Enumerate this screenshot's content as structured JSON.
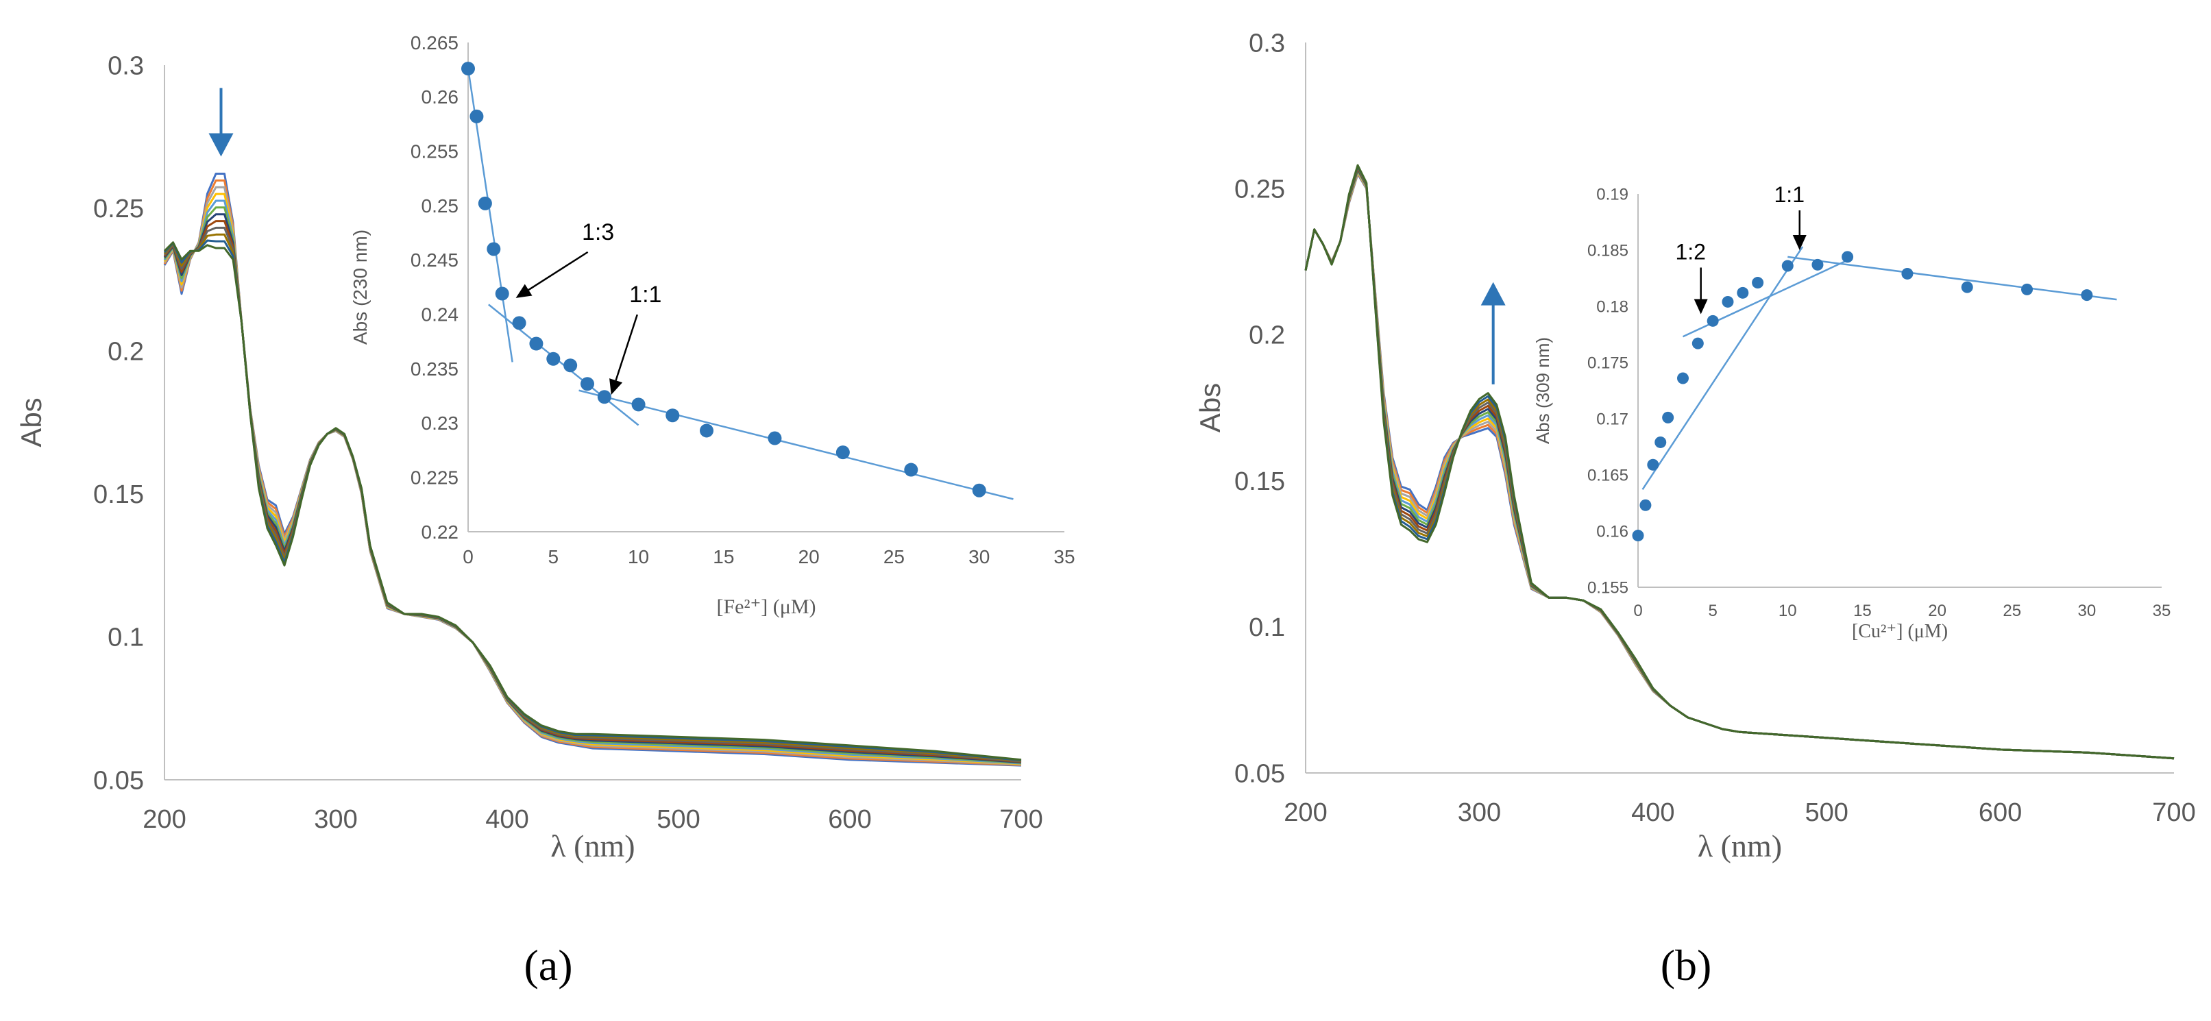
{
  "figure": {
    "panel_a_label": "(a)",
    "panel_b_label": "(b)"
  },
  "chart_data": [
    {
      "id": "a-main",
      "type": "line",
      "xlabel": "λ (nm)",
      "ylabel": "Abs",
      "xlim": [
        200,
        700
      ],
      "ylim": [
        0.05,
        0.3
      ],
      "xticks": [
        200,
        300,
        400,
        500,
        600,
        700
      ],
      "yticks": [
        0.05,
        0.1,
        0.15,
        0.2,
        0.25,
        0.3
      ],
      "arrow_direction": "down",
      "arrow_x": 233,
      "series_count": 12,
      "series_colors": [
        "#4472c4",
        "#ed7d31",
        "#a5a5a5",
        "#ffc000",
        "#5b9bd5",
        "#70ad47",
        "#264478",
        "#9e480e",
        "#636363",
        "#997300",
        "#255e91",
        "#43682b"
      ],
      "series_first": {
        "x": [
          200,
          205,
          210,
          215,
          220,
          225,
          230,
          235,
          240,
          245,
          250,
          255,
          260,
          265,
          270,
          275,
          280,
          285,
          290,
          295,
          300,
          305,
          310,
          315,
          320,
          330,
          340,
          350,
          360,
          370,
          380,
          390,
          400,
          410,
          420,
          430,
          440,
          450,
          500,
          550,
          600,
          650,
          700
        ],
        "values": [
          0.23,
          0.235,
          0.22,
          0.232,
          0.238,
          0.255,
          0.262,
          0.262,
          0.245,
          0.21,
          0.18,
          0.16,
          0.148,
          0.146,
          0.136,
          0.142,
          0.152,
          0.162,
          0.168,
          0.171,
          0.172,
          0.17,
          0.162,
          0.15,
          0.13,
          0.11,
          0.108,
          0.107,
          0.106,
          0.103,
          0.098,
          0.088,
          0.077,
          0.07,
          0.065,
          0.063,
          0.062,
          0.061,
          0.06,
          0.059,
          0.057,
          0.056,
          0.055
        ]
      },
      "series_last": {
        "x": [
          200,
          205,
          210,
          215,
          220,
          225,
          230,
          235,
          240,
          245,
          250,
          255,
          260,
          265,
          270,
          275,
          280,
          285,
          290,
          295,
          300,
          305,
          310,
          315,
          320,
          330,
          340,
          350,
          360,
          370,
          380,
          390,
          400,
          410,
          420,
          430,
          440,
          450,
          500,
          550,
          600,
          650,
          700
        ],
        "values": [
          0.235,
          0.238,
          0.232,
          0.235,
          0.235,
          0.237,
          0.236,
          0.236,
          0.232,
          0.21,
          0.178,
          0.152,
          0.138,
          0.132,
          0.125,
          0.135,
          0.148,
          0.16,
          0.167,
          0.171,
          0.173,
          0.171,
          0.163,
          0.152,
          0.132,
          0.112,
          0.108,
          0.108,
          0.107,
          0.104,
          0.098,
          0.09,
          0.079,
          0.073,
          0.069,
          0.067,
          0.066,
          0.066,
          0.065,
          0.064,
          0.062,
          0.06,
          0.057
        ]
      }
    },
    {
      "id": "a-inset",
      "type": "scatter",
      "xlabel": "[Fe²⁺] (μM)",
      "ylabel": "Abs (230 nm)",
      "xlim": [
        0,
        35
      ],
      "ylim": [
        0.22,
        0.265
      ],
      "xticks": [
        0,
        5,
        10,
        15,
        20,
        25,
        30,
        35
      ],
      "yticks": [
        0.22,
        0.225,
        0.23,
        0.235,
        0.24,
        0.245,
        0.25,
        0.255,
        0.26,
        0.265
      ],
      "points": {
        "x": [
          0,
          0.5,
          1,
          1.5,
          2,
          3,
          4,
          5,
          6,
          7,
          8,
          10,
          12,
          14,
          18,
          22,
          26,
          30
        ],
        "values": [
          0.2626,
          0.2582,
          0.2502,
          0.246,
          0.2419,
          0.2392,
          0.2373,
          0.2359,
          0.2353,
          0.2336,
          0.2324,
          0.2317,
          0.2307,
          0.2293,
          0.2286,
          0.2273,
          0.2257,
          0.2238
        ]
      },
      "fit_lines": [
        {
          "x": [
            0,
            2.6
          ],
          "values": [
            0.2626,
            0.2356
          ]
        },
        {
          "x": [
            1.2,
            10
          ],
          "values": [
            0.2409,
            0.2298
          ]
        },
        {
          "x": [
            6.5,
            32
          ],
          "values": [
            0.233,
            0.223
          ]
        }
      ],
      "annotations": [
        {
          "text": "1:3",
          "arrow_to_x": 2.8,
          "arrow_to_y": 0.2415
        },
        {
          "text": "1:1",
          "arrow_to_x": 8.4,
          "arrow_to_y": 0.2326
        }
      ]
    },
    {
      "id": "b-main",
      "type": "line",
      "xlabel": "λ (nm)",
      "ylabel": "Abs",
      "xlim": [
        200,
        700
      ],
      "ylim": [
        0.05,
        0.3
      ],
      "xticks": [
        200,
        300,
        400,
        500,
        600,
        700
      ],
      "yticks": [
        0.05,
        0.1,
        0.15,
        0.2,
        0.25,
        0.3
      ],
      "arrow_direction": "up",
      "arrow_x": 308,
      "series_count": 12,
      "series_colors": [
        "#4472c4",
        "#ed7d31",
        "#a5a5a5",
        "#ffc000",
        "#5b9bd5",
        "#70ad47",
        "#264478",
        "#9e480e",
        "#636363",
        "#997300",
        "#255e91",
        "#43682b"
      ],
      "series_first": {
        "x": [
          200,
          205,
          210,
          215,
          220,
          225,
          230,
          235,
          240,
          245,
          250,
          255,
          260,
          265,
          270,
          275,
          280,
          285,
          290,
          295,
          300,
          305,
          310,
          315,
          320,
          330,
          340,
          350,
          360,
          370,
          380,
          390,
          400,
          410,
          420,
          430,
          440,
          450,
          500,
          550,
          600,
          650,
          700
        ],
        "values": [
          0.222,
          0.236,
          0.231,
          0.225,
          0.232,
          0.245,
          0.255,
          0.25,
          0.215,
          0.18,
          0.158,
          0.148,
          0.147,
          0.142,
          0.14,
          0.148,
          0.158,
          0.163,
          0.165,
          0.166,
          0.167,
          0.168,
          0.165,
          0.152,
          0.135,
          0.113,
          0.11,
          0.11,
          0.109,
          0.105,
          0.097,
          0.087,
          0.078,
          0.073,
          0.069,
          0.067,
          0.065,
          0.064,
          0.062,
          0.06,
          0.058,
          0.057,
          0.055
        ]
      },
      "series_last": {
        "x": [
          200,
          205,
          210,
          215,
          220,
          225,
          230,
          235,
          240,
          245,
          250,
          255,
          260,
          265,
          270,
          275,
          280,
          285,
          290,
          295,
          300,
          305,
          310,
          315,
          320,
          330,
          340,
          350,
          360,
          370,
          380,
          390,
          400,
          410,
          420,
          430,
          440,
          450,
          500,
          550,
          600,
          650,
          700
        ],
        "values": [
          0.222,
          0.236,
          0.231,
          0.224,
          0.232,
          0.248,
          0.258,
          0.252,
          0.21,
          0.17,
          0.145,
          0.135,
          0.133,
          0.13,
          0.129,
          0.135,
          0.146,
          0.158,
          0.167,
          0.174,
          0.178,
          0.18,
          0.176,
          0.165,
          0.145,
          0.115,
          0.11,
          0.11,
          0.109,
          0.106,
          0.098,
          0.089,
          0.079,
          0.073,
          0.069,
          0.067,
          0.065,
          0.064,
          0.062,
          0.06,
          0.058,
          0.057,
          0.055
        ]
      }
    },
    {
      "id": "b-inset",
      "type": "scatter",
      "xlabel": "[Cu²⁺] (μM)",
      "ylabel": "Abs (309 nm)",
      "xlim": [
        0,
        35
      ],
      "ylim": [
        0.155,
        0.19
      ],
      "xticks": [
        0,
        5,
        10,
        15,
        20,
        25,
        30,
        35
      ],
      "yticks": [
        0.155,
        0.16,
        0.165,
        0.17,
        0.175,
        0.18,
        0.185,
        0.19
      ],
      "points": {
        "x": [
          0,
          0.5,
          1,
          1.5,
          2,
          3,
          4,
          5,
          6,
          7,
          8,
          10,
          12,
          14,
          18,
          22,
          26,
          30
        ],
        "values": [
          0.1596,
          0.1623,
          0.1659,
          0.1679,
          0.1701,
          0.1736,
          0.1767,
          0.1787,
          0.1804,
          0.1812,
          0.1821,
          0.1836,
          0.1837,
          0.1844,
          0.1829,
          0.1817,
          0.1815,
          0.181
        ]
      },
      "fit_lines": [
        {
          "x": [
            0.3,
            11
          ],
          "values": [
            0.1637,
            0.1853
          ]
        },
        {
          "x": [
            3,
            14
          ],
          "values": [
            0.1773,
            0.1841
          ]
        },
        {
          "x": [
            10,
            32
          ],
          "values": [
            0.1844,
            0.1806
          ]
        }
      ],
      "annotations": [
        {
          "text": "1:2",
          "arrow_to_x": 4.2,
          "arrow_to_y": 0.1793
        },
        {
          "text": "1:1",
          "arrow_to_x": 10.8,
          "arrow_to_y": 0.185
        }
      ]
    }
  ]
}
